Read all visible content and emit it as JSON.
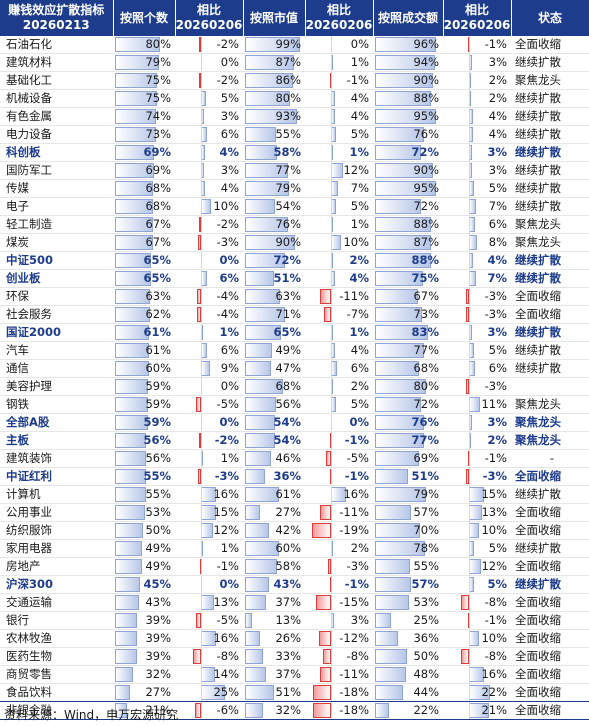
{
  "title": "赚钱效应扩散指标 20260213",
  "headers": {
    "name": "赚钱效应扩散指标 20260213",
    "count": "按照个数",
    "count_change": "相比 20260206",
    "mktcap": "按照市值",
    "mktcap_change": "相比 20260206",
    "turnover": "按照成交额",
    "turnover_change": "相比 20260206",
    "status": "状态"
  },
  "footer": "资料来源：Wind，申万宏源研究",
  "colors": {
    "header_bg": "#1e3c8c",
    "bold_text": "#1e3c8c",
    "positive_bar": "#b7c7e8",
    "negative_bar": "#f49a9a"
  },
  "rows": [
    {
      "name": "石油石化",
      "bold": false,
      "count": 80,
      "count_chg": -2,
      "mktcap": 99,
      "mktcap_chg": 0,
      "turnover": 96,
      "turnover_chg": -1,
      "status": "全面收缩"
    },
    {
      "name": "建筑材料",
      "bold": false,
      "count": 79,
      "count_chg": 0,
      "mktcap": 87,
      "mktcap_chg": 1,
      "turnover": 94,
      "turnover_chg": 3,
      "status": "继续扩散"
    },
    {
      "name": "基础化工",
      "bold": false,
      "count": 75,
      "count_chg": -2,
      "mktcap": 86,
      "mktcap_chg": -1,
      "turnover": 90,
      "turnover_chg": 2,
      "status": "聚焦龙头"
    },
    {
      "name": "机械设备",
      "bold": false,
      "count": 75,
      "count_chg": 5,
      "mktcap": 80,
      "mktcap_chg": 4,
      "turnover": 88,
      "turnover_chg": 2,
      "status": "继续扩散"
    },
    {
      "name": "有色金属",
      "bold": false,
      "count": 74,
      "count_chg": 3,
      "mktcap": 93,
      "mktcap_chg": 4,
      "turnover": 95,
      "turnover_chg": 4,
      "status": "继续扩散"
    },
    {
      "name": "电力设备",
      "bold": false,
      "count": 73,
      "count_chg": 6,
      "mktcap": 55,
      "mktcap_chg": 5,
      "turnover": 76,
      "turnover_chg": 4,
      "status": "继续扩散"
    },
    {
      "name": "科创板",
      "bold": true,
      "count": 69,
      "count_chg": 4,
      "mktcap": 58,
      "mktcap_chg": 1,
      "turnover": 72,
      "turnover_chg": 3,
      "status": "继续扩散"
    },
    {
      "name": "国防军工",
      "bold": false,
      "count": 69,
      "count_chg": 3,
      "mktcap": 77,
      "mktcap_chg": 12,
      "turnover": 90,
      "turnover_chg": 3,
      "status": "继续扩散"
    },
    {
      "name": "传媒",
      "bold": false,
      "count": 68,
      "count_chg": 4,
      "mktcap": 79,
      "mktcap_chg": 7,
      "turnover": 95,
      "turnover_chg": 5,
      "status": "继续扩散"
    },
    {
      "name": "电子",
      "bold": false,
      "count": 68,
      "count_chg": 10,
      "mktcap": 54,
      "mktcap_chg": 5,
      "turnover": 72,
      "turnover_chg": 7,
      "status": "继续扩散"
    },
    {
      "name": "轻工制造",
      "bold": false,
      "count": 67,
      "count_chg": -2,
      "mktcap": 76,
      "mktcap_chg": 1,
      "turnover": 88,
      "turnover_chg": 6,
      "status": "聚焦龙头"
    },
    {
      "name": "煤炭",
      "bold": false,
      "count": 67,
      "count_chg": -3,
      "mktcap": 90,
      "mktcap_chg": 10,
      "turnover": 87,
      "turnover_chg": 8,
      "status": "聚焦龙头"
    },
    {
      "name": "中证500",
      "bold": true,
      "count": 65,
      "count_chg": 0,
      "mktcap": 72,
      "mktcap_chg": 2,
      "turnover": 88,
      "turnover_chg": 4,
      "status": "继续扩散"
    },
    {
      "name": "创业板",
      "bold": true,
      "count": 65,
      "count_chg": 6,
      "mktcap": 51,
      "mktcap_chg": 4,
      "turnover": 75,
      "turnover_chg": 7,
      "status": "继续扩散"
    },
    {
      "name": "环保",
      "bold": false,
      "count": 63,
      "count_chg": -4,
      "mktcap": 63,
      "mktcap_chg": -11,
      "turnover": 67,
      "turnover_chg": -3,
      "status": "全面收缩"
    },
    {
      "name": "社会服务",
      "bold": false,
      "count": 62,
      "count_chg": -4,
      "mktcap": 71,
      "mktcap_chg": -7,
      "turnover": 73,
      "turnover_chg": -3,
      "status": "全面收缩"
    },
    {
      "name": "国证2000",
      "bold": true,
      "count": 61,
      "count_chg": 1,
      "mktcap": 65,
      "mktcap_chg": 1,
      "turnover": 83,
      "turnover_chg": 3,
      "status": "继续扩散"
    },
    {
      "name": "汽车",
      "bold": false,
      "count": 61,
      "count_chg": 6,
      "mktcap": 49,
      "mktcap_chg": 4,
      "turnover": 77,
      "turnover_chg": 5,
      "status": "继续扩散"
    },
    {
      "name": "通信",
      "bold": false,
      "count": 60,
      "count_chg": 9,
      "mktcap": 47,
      "mktcap_chg": 6,
      "turnover": 68,
      "turnover_chg": 6,
      "status": "继续扩散"
    },
    {
      "name": "美容护理",
      "bold": false,
      "count": 59,
      "count_chg": 0,
      "mktcap": 68,
      "mktcap_chg": 2,
      "turnover": 80,
      "turnover_chg": -3,
      "status": ""
    },
    {
      "name": "钢铁",
      "bold": false,
      "count": 59,
      "count_chg": -5,
      "mktcap": 56,
      "mktcap_chg": 5,
      "turnover": 72,
      "turnover_chg": 11,
      "status": "聚焦龙头"
    },
    {
      "name": "全部A股",
      "bold": true,
      "count": 59,
      "count_chg": 0,
      "mktcap": 54,
      "mktcap_chg": 0,
      "turnover": 76,
      "turnover_chg": 3,
      "status": "聚焦龙头"
    },
    {
      "name": "主板",
      "bold": true,
      "count": 56,
      "count_chg": -2,
      "mktcap": 54,
      "mktcap_chg": -1,
      "turnover": 77,
      "turnover_chg": 2,
      "status": "聚焦龙头"
    },
    {
      "name": "建筑装饰",
      "bold": false,
      "count": 56,
      "count_chg": 1,
      "mktcap": 46,
      "mktcap_chg": -5,
      "turnover": 69,
      "turnover_chg": -1,
      "status": "-"
    },
    {
      "name": "中证红利",
      "bold": true,
      "count": 55,
      "count_chg": -3,
      "mktcap": 36,
      "mktcap_chg": -1,
      "turnover": 51,
      "turnover_chg": -3,
      "status": "全面收缩"
    },
    {
      "name": "计算机",
      "bold": false,
      "count": 55,
      "count_chg": 16,
      "mktcap": 61,
      "mktcap_chg": 16,
      "turnover": 79,
      "turnover_chg": 15,
      "status": "继续扩散"
    },
    {
      "name": "公用事业",
      "bold": false,
      "count": 53,
      "count_chg": 15,
      "mktcap": 27,
      "mktcap_chg": -11,
      "turnover": 57,
      "turnover_chg": 13,
      "status": "全面收缩"
    },
    {
      "name": "纺织服饰",
      "bold": false,
      "count": 50,
      "count_chg": 12,
      "mktcap": 42,
      "mktcap_chg": -19,
      "turnover": 70,
      "turnover_chg": 10,
      "status": "全面收缩"
    },
    {
      "name": "家用电器",
      "bold": false,
      "count": 49,
      "count_chg": 1,
      "mktcap": 60,
      "mktcap_chg": 2,
      "turnover": 78,
      "turnover_chg": 5,
      "status": "继续扩散"
    },
    {
      "name": "房地产",
      "bold": false,
      "count": 49,
      "count_chg": -1,
      "mktcap": 58,
      "mktcap_chg": -3,
      "turnover": 55,
      "turnover_chg": 12,
      "status": "全面收缩"
    },
    {
      "name": "沪深300",
      "bold": true,
      "count": 45,
      "count_chg": 0,
      "mktcap": 43,
      "mktcap_chg": -1,
      "turnover": 57,
      "turnover_chg": 5,
      "status": "继续扩散"
    },
    {
      "name": "交通运输",
      "bold": false,
      "count": 43,
      "count_chg": 13,
      "mktcap": 37,
      "mktcap_chg": -15,
      "turnover": 53,
      "turnover_chg": -8,
      "status": "全面收缩"
    },
    {
      "name": "银行",
      "bold": false,
      "count": 39,
      "count_chg": -5,
      "mktcap": 13,
      "mktcap_chg": 3,
      "turnover": 25,
      "turnover_chg": -1,
      "status": "全面收缩"
    },
    {
      "name": "农林牧渔",
      "bold": false,
      "count": 39,
      "count_chg": 16,
      "mktcap": 26,
      "mktcap_chg": -12,
      "turnover": 36,
      "turnover_chg": 10,
      "status": "全面收缩"
    },
    {
      "name": "医药生物",
      "bold": false,
      "count": 39,
      "count_chg": -8,
      "mktcap": 33,
      "mktcap_chg": -8,
      "turnover": 50,
      "turnover_chg": -8,
      "status": "全面收缩"
    },
    {
      "name": "商贸零售",
      "bold": false,
      "count": 32,
      "count_chg": 14,
      "mktcap": 37,
      "mktcap_chg": -11,
      "turnover": 48,
      "turnover_chg": 16,
      "status": "全面收缩"
    },
    {
      "name": "食品饮料",
      "bold": false,
      "count": 27,
      "count_chg": 25,
      "mktcap": 51,
      "mktcap_chg": -18,
      "turnover": 44,
      "turnover_chg": 22,
      "status": "全面收缩"
    },
    {
      "name": "非银金融",
      "bold": false,
      "count": 21,
      "count_chg": -6,
      "mktcap": 32,
      "mktcap_chg": -18,
      "turnover": 22,
      "turnover_chg": 21,
      "status": "全面收缩"
    }
  ]
}
